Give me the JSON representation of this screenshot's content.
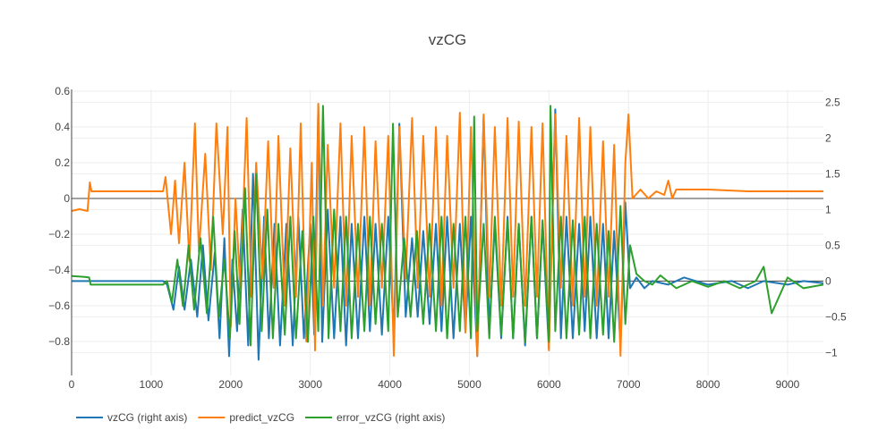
{
  "chart_data": {
    "type": "line",
    "title": "vzCG",
    "xlabel": "",
    "ylabel": "",
    "ylabel_right": "",
    "xlim": [
      0,
      9450
    ],
    "ylim_left": [
      -0.99,
      0.61
    ],
    "ylim_right": [
      -1.32,
      2.68
    ],
    "x_ticks": [
      0,
      1000,
      2000,
      3000,
      4000,
      5000,
      6000,
      7000,
      8000,
      9000
    ],
    "x_tick_labels": [
      "0",
      "1000",
      "2000",
      "3000",
      "4000",
      "5000",
      "6000",
      "7000",
      "8000",
      "9000"
    ],
    "y_left_ticks": [
      0.6,
      0.4,
      0.2,
      0,
      -0.2,
      -0.4,
      -0.6,
      -0.8
    ],
    "y_left_tick_labels": [
      "0.6",
      "0.4",
      "0.2",
      "0",
      "−0.2",
      "−0.4",
      "−0.6",
      "−0.8"
    ],
    "y_right_ticks": [
      2.5,
      2,
      1.5,
      1,
      0.5,
      0,
      -0.5,
      -1
    ],
    "y_right_tick_labels": [
      "2.5",
      "2",
      "1.5",
      "1",
      "0.5",
      "0",
      "−0.5",
      "−1"
    ],
    "grid": true,
    "legend_position": "bottom-left",
    "series": [
      {
        "name": "vzCG (right axis)",
        "axis": "right",
        "color": "#1f77b4",
        "x": [
          0,
          1150,
          1200,
          1280,
          1350,
          1420,
          1500,
          1580,
          1650,
          1720,
          1800,
          1860,
          1920,
          1980,
          2020,
          2080,
          2150,
          2220,
          2280,
          2350,
          2420,
          2480,
          2550,
          2620,
          2700,
          2780,
          2850,
          2920,
          3000,
          3050,
          3100,
          3150,
          3220,
          3300,
          3380,
          3450,
          3520,
          3600,
          3680,
          3750,
          3820,
          3900,
          3980,
          4050,
          4120,
          4200,
          4280,
          4350,
          4420,
          4500,
          4580,
          4650,
          4720,
          4800,
          4880,
          4950,
          5020,
          5100,
          5180,
          5250,
          5320,
          5400,
          5480,
          5550,
          5620,
          5700,
          5780,
          5850,
          5920,
          6000,
          6080,
          6150,
          6220,
          6300,
          6380,
          6450,
          6520,
          6600,
          6680,
          6750,
          6820,
          6900,
          6960,
          7020,
          7100,
          7200,
          7300,
          7500,
          7700,
          8000,
          8300,
          8500,
          8700,
          9000,
          9200,
          9450
        ],
        "y": [
          0.0,
          0.0,
          -0.05,
          -0.4,
          0.2,
          -0.4,
          0.3,
          -0.5,
          0.5,
          -0.55,
          0.4,
          -0.8,
          0.6,
          -1.05,
          0.3,
          -0.7,
          1.0,
          -0.9,
          1.5,
          -1.1,
          0.9,
          -0.8,
          0.8,
          -0.9,
          0.8,
          -0.9,
          0.9,
          -0.8,
          0.8,
          -0.75,
          2.45,
          -0.85,
          1.0,
          -0.8,
          0.9,
          -0.9,
          0.8,
          -0.8,
          0.9,
          -0.7,
          0.8,
          -0.75,
          0.9,
          -0.75,
          2.2,
          -0.5,
          0.6,
          -0.5,
          0.7,
          -0.6,
          0.8,
          -0.7,
          0.9,
          -0.8,
          0.8,
          -0.7,
          0.9,
          -1.05,
          2.3,
          -0.7,
          0.8,
          -0.8,
          0.9,
          -0.8,
          0.8,
          -0.9,
          0.9,
          -0.8,
          0.8,
          -0.95,
          2.4,
          -0.8,
          0.9,
          -0.8,
          0.8,
          -0.7,
          0.9,
          -0.8,
          0.8,
          -0.8,
          0.7,
          -0.9,
          1.1,
          -0.1,
          0.05,
          -0.1,
          0.0,
          -0.05,
          0.05,
          -0.05,
          0.0,
          -0.1,
          0.0,
          -0.05,
          0.0,
          -0.03
        ]
      },
      {
        "name": "predict_vzCG",
        "axis": "left",
        "color": "#ff7f0e",
        "x": [
          0,
          100,
          200,
          230,
          250,
          400,
          800,
          1150,
          1180,
          1250,
          1300,
          1350,
          1420,
          1480,
          1550,
          1600,
          1680,
          1750,
          1820,
          1900,
          1960,
          2000,
          2060,
          2120,
          2200,
          2260,
          2320,
          2400,
          2470,
          2540,
          2600,
          2680,
          2750,
          2820,
          2880,
          2950,
          3020,
          3060,
          3100,
          3160,
          3220,
          3300,
          3380,
          3450,
          3520,
          3600,
          3680,
          3750,
          3820,
          3900,
          3980,
          4050,
          4120,
          4200,
          4280,
          4350,
          4420,
          4500,
          4580,
          4650,
          4720,
          4800,
          4880,
          4950,
          5020,
          5100,
          5180,
          5250,
          5320,
          5400,
          5480,
          5550,
          5620,
          5700,
          5780,
          5850,
          5920,
          6000,
          6080,
          6150,
          6220,
          6300,
          6380,
          6450,
          6520,
          6600,
          6680,
          6750,
          6820,
          6900,
          6960,
          7000,
          7050,
          7150,
          7250,
          7350,
          7450,
          7500,
          7550,
          7600,
          8000,
          8500,
          9000,
          9450
        ],
        "y": [
          -0.07,
          -0.06,
          -0.07,
          0.09,
          0.04,
          0.04,
          0.04,
          0.04,
          0.12,
          -0.2,
          0.1,
          -0.25,
          0.2,
          -0.35,
          0.42,
          -0.3,
          0.25,
          -0.4,
          0.42,
          -0.2,
          0.4,
          -0.72,
          0.0,
          -0.5,
          0.45,
          -0.55,
          0.2,
          -0.45,
          0.32,
          -0.5,
          0.35,
          -0.6,
          0.28,
          -0.55,
          0.42,
          -0.8,
          0.2,
          -0.85,
          0.53,
          -0.6,
          0.3,
          -0.5,
          0.42,
          -0.6,
          0.35,
          -0.55,
          0.4,
          -0.6,
          0.32,
          -0.5,
          0.35,
          -0.88,
          0.4,
          -0.45,
          0.45,
          -0.5,
          0.35,
          -0.55,
          0.4,
          -0.6,
          0.35,
          -0.5,
          0.48,
          -0.75,
          0.4,
          -0.88,
          0.47,
          -0.55,
          0.4,
          -0.6,
          0.45,
          -0.55,
          0.43,
          -0.6,
          0.4,
          -0.55,
          0.42,
          -0.85,
          0.47,
          -0.5,
          0.35,
          -0.6,
          0.45,
          -0.55,
          0.4,
          -0.6,
          0.32,
          -0.55,
          0.3,
          -0.88,
          0.2,
          0.47,
          0.0,
          0.05,
          0.0,
          0.04,
          0.02,
          0.1,
          0.0,
          0.05,
          0.05,
          0.04,
          0.04,
          0.04
        ]
      },
      {
        "name": "error_vzCG (right axis)",
        "axis": "right",
        "color": "#2ca02c",
        "x": [
          0,
          150,
          220,
          240,
          500,
          1150,
          1200,
          1260,
          1330,
          1400,
          1470,
          1540,
          1620,
          1700,
          1780,
          1850,
          1920,
          1990,
          2050,
          2110,
          2180,
          2250,
          2320,
          2390,
          2460,
          2530,
          2600,
          2680,
          2750,
          2820,
          2900,
          2970,
          3040,
          3100,
          3160,
          3230,
          3300,
          3380,
          3450,
          3520,
          3600,
          3680,
          3750,
          3820,
          3900,
          3980,
          4040,
          4100,
          4180,
          4260,
          4340,
          4420,
          4500,
          4580,
          4650,
          4720,
          4800,
          4880,
          4950,
          5020,
          5060,
          5100,
          5180,
          5250,
          5320,
          5400,
          5480,
          5550,
          5620,
          5700,
          5780,
          5850,
          5920,
          6000,
          6020,
          6080,
          6150,
          6220,
          6300,
          6380,
          6450,
          6520,
          6600,
          6680,
          6750,
          6820,
          6900,
          6960,
          7020,
          7100,
          7200,
          7300,
          7400,
          7600,
          7800,
          8000,
          8200,
          8400,
          8600,
          8700,
          8800,
          9000,
          9200,
          9450
        ],
        "y": [
          0.07,
          0.06,
          0.05,
          -0.05,
          -0.05,
          -0.05,
          0.0,
          -0.3,
          0.3,
          -0.35,
          0.5,
          -0.4,
          0.6,
          -0.45,
          0.9,
          -0.5,
          0.3,
          -0.8,
          0.7,
          -0.6,
          1.3,
          -0.9,
          1.5,
          -0.7,
          1.0,
          -0.8,
          0.8,
          -0.75,
          0.9,
          -0.8,
          0.7,
          -0.85,
          0.9,
          -0.7,
          2.45,
          -0.8,
          1.0,
          -0.7,
          0.9,
          -0.8,
          0.8,
          -0.7,
          0.9,
          -0.6,
          0.8,
          -0.7,
          2.2,
          -0.5,
          0.6,
          -0.5,
          0.7,
          -0.6,
          0.8,
          -0.7,
          0.9,
          -0.8,
          0.8,
          -0.7,
          0.9,
          -0.8,
          2.3,
          -0.7,
          0.8,
          -0.8,
          0.9,
          -0.75,
          0.85,
          -0.8,
          0.8,
          -0.85,
          0.9,
          -0.8,
          0.85,
          -0.85,
          2.45,
          -0.7,
          0.9,
          -0.8,
          0.85,
          -0.75,
          0.9,
          -0.8,
          0.8,
          -0.75,
          0.7,
          -0.85,
          1.05,
          -0.6,
          0.5,
          0.1,
          0.0,
          -0.05,
          0.08,
          -0.1,
          0.0,
          -0.08,
          0.0,
          -0.1,
          0.0,
          0.2,
          -0.45,
          0.05,
          -0.1,
          -0.05
        ]
      }
    ]
  }
}
